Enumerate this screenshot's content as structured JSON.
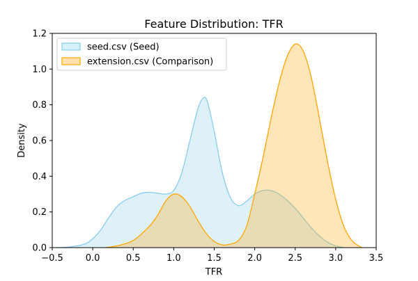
{
  "chart_data": {
    "type": "area",
    "title": "Feature Distribution: TFR",
    "xlabel": "TFR",
    "ylabel": "Density",
    "xlim": [
      -0.5,
      3.5
    ],
    "ylim": [
      0.0,
      1.2
    ],
    "xticks": [
      -0.5,
      0.0,
      0.5,
      1.0,
      1.5,
      2.0,
      2.5,
      3.0,
      3.5
    ],
    "xtick_labels": [
      "−0.5",
      "0.0",
      "0.5",
      "1.0",
      "1.5",
      "2.0",
      "2.5",
      "3.0",
      "3.5"
    ],
    "yticks": [
      0.0,
      0.2,
      0.4,
      0.6,
      0.8,
      1.0,
      1.2
    ],
    "ytick_labels": [
      "0.0",
      "0.2",
      "0.4",
      "0.6",
      "0.8",
      "1.0",
      "1.2"
    ],
    "grid": false,
    "legend_position": "top-left",
    "series": [
      {
        "name": "seed.csv (Seed)",
        "line_color": "#87ceeb",
        "fill_color": "#87ceeb",
        "fill_opacity": 0.28,
        "points": [
          [
            -0.45,
            0.0
          ],
          [
            -0.3,
            0.003
          ],
          [
            -0.1,
            0.02
          ],
          [
            0.0,
            0.05
          ],
          [
            0.1,
            0.1
          ],
          [
            0.2,
            0.17
          ],
          [
            0.3,
            0.23
          ],
          [
            0.4,
            0.265
          ],
          [
            0.5,
            0.285
          ],
          [
            0.6,
            0.305
          ],
          [
            0.7,
            0.31
          ],
          [
            0.8,
            0.305
          ],
          [
            0.9,
            0.3
          ],
          [
            1.0,
            0.32
          ],
          [
            1.1,
            0.42
          ],
          [
            1.2,
            0.6
          ],
          [
            1.3,
            0.78
          ],
          [
            1.37,
            0.84
          ],
          [
            1.42,
            0.81
          ],
          [
            1.5,
            0.65
          ],
          [
            1.6,
            0.42
          ],
          [
            1.7,
            0.28
          ],
          [
            1.8,
            0.235
          ],
          [
            1.9,
            0.26
          ],
          [
            2.0,
            0.3
          ],
          [
            2.1,
            0.32
          ],
          [
            2.2,
            0.32
          ],
          [
            2.3,
            0.3
          ],
          [
            2.4,
            0.265
          ],
          [
            2.5,
            0.22
          ],
          [
            2.6,
            0.165
          ],
          [
            2.7,
            0.11
          ],
          [
            2.8,
            0.065
          ],
          [
            2.9,
            0.03
          ],
          [
            3.0,
            0.01
          ],
          [
            3.1,
            0.0
          ]
        ]
      },
      {
        "name": "extension.csv (Comparison)",
        "line_color": "#ffa500",
        "fill_color": "#ffa500",
        "fill_opacity": 0.28,
        "points": [
          [
            0.15,
            0.0
          ],
          [
            0.3,
            0.01
          ],
          [
            0.5,
            0.04
          ],
          [
            0.7,
            0.12
          ],
          [
            0.8,
            0.18
          ],
          [
            0.9,
            0.26
          ],
          [
            1.0,
            0.3
          ],
          [
            1.1,
            0.285
          ],
          [
            1.2,
            0.23
          ],
          [
            1.3,
            0.15
          ],
          [
            1.4,
            0.08
          ],
          [
            1.5,
            0.035
          ],
          [
            1.6,
            0.015
          ],
          [
            1.7,
            0.02
          ],
          [
            1.8,
            0.04
          ],
          [
            1.9,
            0.12
          ],
          [
            2.0,
            0.3
          ],
          [
            2.1,
            0.5
          ],
          [
            2.2,
            0.72
          ],
          [
            2.3,
            0.92
          ],
          [
            2.4,
            1.07
          ],
          [
            2.5,
            1.14
          ],
          [
            2.6,
            1.1
          ],
          [
            2.7,
            0.95
          ],
          [
            2.8,
            0.72
          ],
          [
            2.9,
            0.48
          ],
          [
            3.0,
            0.27
          ],
          [
            3.1,
            0.12
          ],
          [
            3.2,
            0.04
          ],
          [
            3.3,
            0.005
          ],
          [
            3.33,
            0.0
          ]
        ]
      }
    ]
  }
}
